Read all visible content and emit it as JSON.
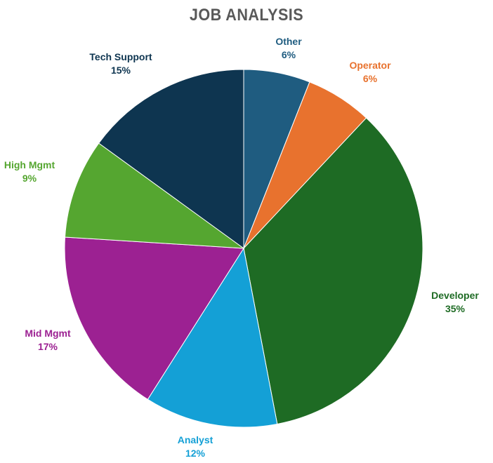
{
  "chart_data": {
    "type": "pie",
    "title": "JOB ANALYSIS",
    "start_angle_deg": 0,
    "direction": "clockwise",
    "slices": [
      {
        "name": "Other",
        "value": 6,
        "label": "6%",
        "color": "#1f5c80",
        "label_color": "#1f5c80"
      },
      {
        "name": "Operator",
        "value": 6,
        "label": "6%",
        "color": "#e8722e",
        "label_color": "#e8722e"
      },
      {
        "name": "Developer",
        "value": 35,
        "label": "35%",
        "color": "#1e6b24",
        "label_color": "#1e6b24"
      },
      {
        "name": "Analyst",
        "value": 12,
        "label": "12%",
        "color": "#14a0d6",
        "label_color": "#14a0d6"
      },
      {
        "name": "Mid Mgmt",
        "value": 17,
        "label": "17%",
        "color": "#9c2192",
        "label_color": "#9c2192"
      },
      {
        "name": "High Mgmt",
        "value": 9,
        "label": "9%",
        "color": "#55a630",
        "label_color": "#55a630"
      },
      {
        "name": "Tech Support",
        "value": 15,
        "label": "15%",
        "color": "#0e3550",
        "label_color": "#0e3550"
      }
    ]
  }
}
